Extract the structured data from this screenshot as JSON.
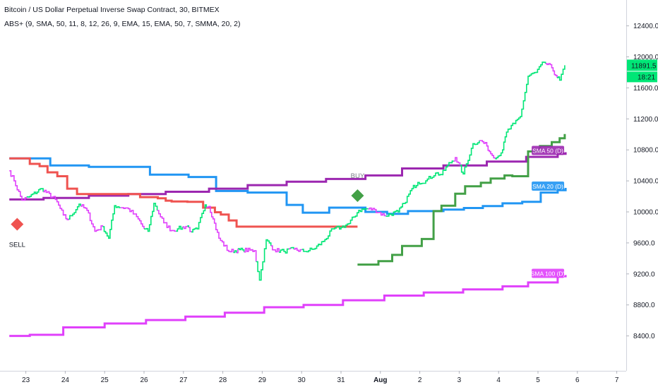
{
  "header": {
    "symbol_line": "Bitcoin / US Dollar Perpetual Inverse Swap Contract, 30, BITMEX",
    "study_line": "ABS+ (9, SMA, 50, 11, 8, 12, 26, 9, EMA, 15, EMA, 50, 7, SMMA, 20, 2)"
  },
  "colors": {
    "bull": "#00e676",
    "bear": "#e040fb",
    "sma20": "#2196f3",
    "sma50": "#9c27b0",
    "sma100": "#e040fb",
    "stop_red": "#ef5350",
    "stop_green": "#43a047",
    "buy_marker": "#43a047",
    "sell_marker": "#ef5350",
    "last_price_bg": "#00e676"
  },
  "price_axis": {
    "ticks": [
      "12400.0",
      "12000.0",
      "11600.0",
      "11200.0",
      "10800.0",
      "10400.0",
      "10000.0",
      "9600.0",
      "9200.0",
      "8800.0",
      "8400.0"
    ],
    "last_price": "11891.5",
    "countdown": "18:21"
  },
  "time_axis": {
    "ticks": [
      "23",
      "24",
      "25",
      "26",
      "27",
      "28",
      "29",
      "30",
      "31",
      "Aug",
      "2",
      "3",
      "4",
      "5",
      "6",
      "7"
    ]
  },
  "markers": {
    "buy": "BUY",
    "sell": "SELL"
  },
  "chart_data": {
    "type": "line",
    "x_unit": "day (0 = Jul 23)",
    "ylim": [
      8000,
      12800
    ],
    "series": [
      {
        "name": "SMA 20 (D)",
        "style": "step",
        "x": [
          -0.42,
          0.62,
          1.6,
          3.15,
          4.13,
          4.83,
          5.63,
          6.62,
          7.03,
          7.7,
          8.62,
          9.17,
          9.7,
          10.6,
          11.12,
          11.6,
          12.1,
          12.6,
          13.07,
          13.5,
          13.7
        ],
        "y": [
          10690,
          10600,
          10580,
          10480,
          10450,
          10270,
          10250,
          10090,
          9990,
          10055,
          10000,
          9975,
          10010,
          10030,
          10050,
          10075,
          10110,
          10130,
          10250,
          10280,
          10310
        ]
      },
      {
        "name": "SMA 50 (D)",
        "style": "step",
        "x": [
          -0.42,
          0.45,
          1.6,
          2.6,
          3.55,
          4.65,
          5.63,
          6.62,
          7.62,
          8.62,
          9.55,
          10.6,
          11.7,
          12.7,
          13.5,
          13.7
        ],
        "y": [
          10160,
          10180,
          10210,
          10230,
          10260,
          10300,
          10345,
          10390,
          10425,
          10470,
          10560,
          10600,
          10650,
          10710,
          10750,
          10770
        ]
      },
      {
        "name": "SMA 100 (D)",
        "style": "step",
        "x": [
          -0.42,
          0.1,
          0.95,
          2.0,
          3.05,
          4.05,
          5.05,
          6.05,
          7.05,
          8.05,
          9.1,
          10.1,
          11.1,
          12.1,
          12.75,
          13.5,
          13.7
        ],
        "y": [
          8400,
          8415,
          8510,
          8560,
          8605,
          8650,
          8700,
          8770,
          8800,
          8860,
          8920,
          8960,
          9000,
          9040,
          9090,
          9170,
          9185
        ]
      },
      {
        "name": "Trailing stop (down)",
        "style": "step",
        "x": [
          -0.42,
          -0.05,
          0.1,
          0.35,
          0.55,
          0.8,
          1.05,
          1.3,
          2.5,
          2.9,
          3.2,
          3.35,
          3.55,
          3.7,
          4.1,
          4.5,
          4.8,
          4.95,
          5.15,
          5.35,
          6.4,
          8.42
        ],
        "y": [
          10690,
          10690,
          10620,
          10590,
          10510,
          10460,
          10300,
          10230,
          10230,
          10190,
          10190,
          10175,
          10145,
          10135,
          10130,
          10055,
          9995,
          9965,
          9890,
          9810,
          9810,
          9810
        ]
      },
      {
        "name": "Trailing stop (up)",
        "style": "step",
        "x": [
          8.42,
          8.95,
          9.3,
          9.55,
          10.05,
          10.35,
          10.55,
          10.9,
          11.15,
          11.55,
          11.8,
          12.15,
          12.35,
          12.75,
          13.05,
          13.35,
          13.55,
          13.68
        ],
        "y": [
          9320,
          9365,
          9445,
          9560,
          9650,
          10010,
          10080,
          10235,
          10330,
          10375,
          10430,
          10470,
          10460,
          10780,
          10850,
          10900,
          10950,
          11005
        ]
      },
      {
        "name": "Price",
        "style": "price",
        "t": [
          -0.42,
          -0.3,
          -0.1,
          0.1,
          0.4,
          0.75,
          0.95,
          1.05,
          1.15,
          1.35,
          1.55,
          1.75,
          1.95,
          2.1,
          2.25,
          2.6,
          2.85,
          3.0,
          3.1,
          3.25,
          3.5,
          3.7,
          3.85,
          4.1,
          4.2,
          4.35,
          4.55,
          4.65,
          4.75,
          4.9,
          5.15,
          5.5,
          5.8,
          5.93,
          6.1,
          6.3,
          6.55,
          6.8,
          7.05,
          7.3,
          7.55,
          7.8,
          8.0,
          8.2,
          8.45,
          8.65,
          8.85,
          9.1,
          9.45,
          9.6,
          9.8,
          9.95,
          10.15,
          10.4,
          10.55,
          10.7,
          10.9,
          11.1,
          11.35,
          11.55,
          11.7,
          11.8,
          11.95,
          12.1,
          12.2,
          12.4,
          12.55,
          12.75,
          12.95,
          13.15,
          13.35,
          13.45,
          13.55,
          13.68
        ],
        "p": [
          10530,
          10400,
          10150,
          10200,
          10300,
          10160,
          9960,
          9900,
          9950,
          10100,
          10020,
          9750,
          9810,
          9660,
          10080,
          10040,
          9910,
          9780,
          9750,
          10110,
          9860,
          9760,
          9780,
          9820,
          9740,
          9780,
          10090,
          10070,
          9910,
          9660,
          9490,
          9510,
          9500,
          9120,
          9640,
          9510,
          9490,
          9520,
          9490,
          9520,
          9620,
          9780,
          9800,
          9850,
          10020,
          10040,
          10030,
          9950,
          10000,
          10110,
          10300,
          10380,
          10400,
          10500,
          10480,
          10600,
          10700,
          10490,
          10880,
          10920,
          10850,
          10750,
          10700,
          10800,
          11030,
          11140,
          11230,
          11750,
          11800,
          11930,
          11860,
          11760,
          11700,
          11891.5
        ]
      }
    ],
    "markers": [
      {
        "label": "SELL",
        "x": -0.22,
        "y": 9840,
        "shape": "diamond"
      },
      {
        "label": "BUY",
        "x": 8.42,
        "y": 10210,
        "shape": "diamond"
      }
    ],
    "series_labels": [
      "SMA 50 (D)",
      "SMA 20 (D)",
      "SMA 100 (D)"
    ]
  }
}
